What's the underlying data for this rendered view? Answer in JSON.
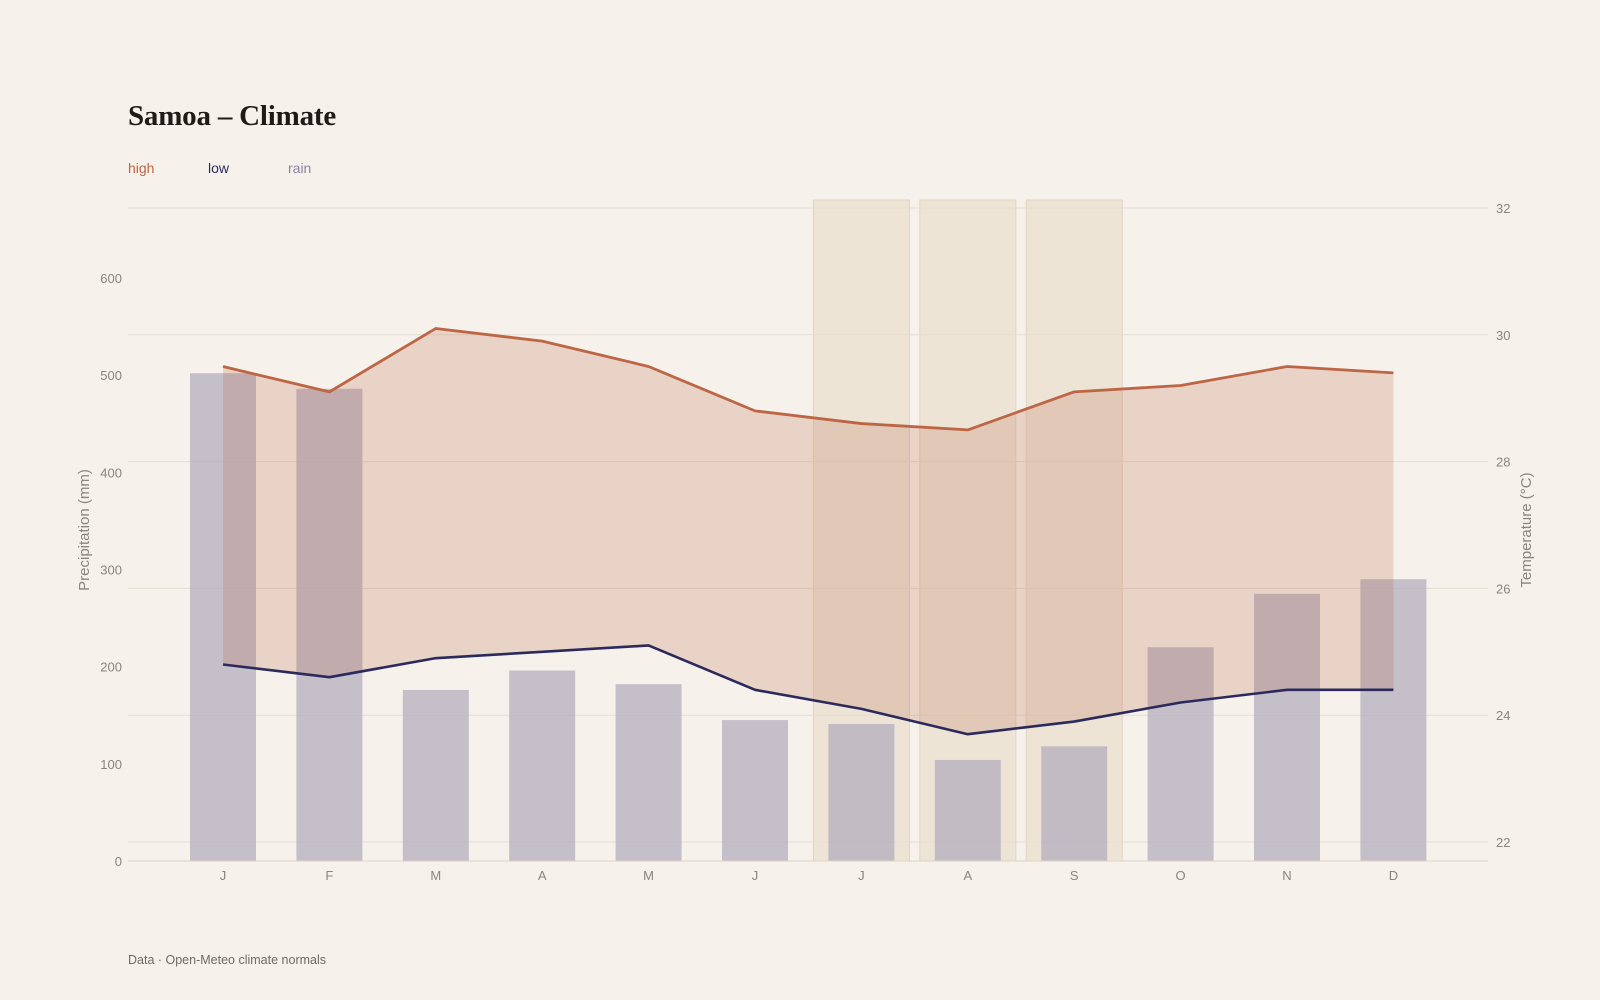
{
  "header": {
    "title": "Samoa – Climate"
  },
  "legend": [
    {
      "label": "high",
      "color": "#bc6645"
    },
    {
      "label": "low",
      "color": "#2b2a5c"
    },
    {
      "label": "rain",
      "color": "#8a86a0"
    }
  ],
  "footer": {
    "source": "Data · Open-Meteo climate normals"
  },
  "chart_data": {
    "type": "bar+line",
    "categories": [
      "J",
      "F",
      "M",
      "A",
      "M",
      "J",
      "J",
      "A",
      "S",
      "O",
      "N",
      "D"
    ],
    "series": [
      {
        "name": "rain",
        "type": "bar",
        "axis": "left",
        "values": [
          502,
          486,
          176,
          196,
          182,
          145,
          141,
          104,
          118,
          220,
          275,
          290
        ]
      },
      {
        "name": "high",
        "type": "line",
        "axis": "right",
        "values": [
          29.5,
          29.1,
          30.1,
          29.9,
          29.5,
          28.8,
          28.6,
          28.5,
          29.1,
          29.2,
          29.5,
          29.4
        ]
      },
      {
        "name": "low",
        "type": "line",
        "axis": "right",
        "values": [
          24.8,
          24.6,
          24.9,
          25.0,
          25.1,
          24.4,
          24.1,
          23.7,
          23.9,
          24.2,
          24.4,
          24.4
        ]
      }
    ],
    "highlighted_months": [
      6,
      7,
      8
    ],
    "ylabel_left": "Precipitation (mm)",
    "ylabel_right": "Temperature (°C)",
    "ylim_left": [
      0,
      600
    ],
    "yticks_left": [
      "0",
      "100",
      "200",
      "300",
      "400",
      "500",
      "600"
    ],
    "ylim_right": [
      22,
      32
    ],
    "yticks_right": [
      "22",
      "24",
      "26",
      "28",
      "30",
      "32"
    ],
    "grid": true,
    "legend_position": "top-left"
  }
}
